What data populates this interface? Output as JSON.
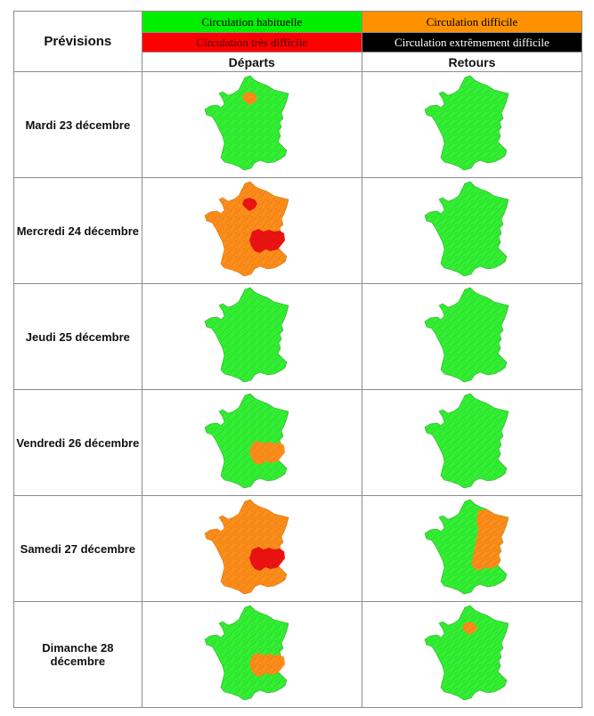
{
  "header": {
    "title": "Prévisions",
    "columns": [
      "Départs",
      "Retours"
    ]
  },
  "legend": [
    {
      "label": "Circulation habituelle",
      "level": "habituelle",
      "bg": "#00ee00",
      "fg": "#000000"
    },
    {
      "label": "Circulation difficile",
      "level": "difficile",
      "bg": "#ff9100",
      "fg": "#000000"
    },
    {
      "label": "Circulation très difficile",
      "level": "tres_difficile",
      "bg": "#ff0000",
      "fg": "#3a0000"
    },
    {
      "label": "Circulation extrêmement difficile",
      "level": "extremement_difficile",
      "bg": "#000000",
      "fg": "#ffffff"
    }
  ],
  "colors": {
    "habituelle": "#33ee33",
    "difficile": "#ff8c1a",
    "tres_difficile": "#ee1111",
    "border": "#2fae2f"
  },
  "rows": [
    {
      "day": "Mardi 23 décembre",
      "departs": {
        "base": "habituelle",
        "idf": "difficile",
        "ara": null
      },
      "retours": {
        "base": "habituelle",
        "idf": null,
        "ara": null
      }
    },
    {
      "day": "Mercredi 24 décembre",
      "departs": {
        "base": "difficile",
        "idf": "tres_difficile",
        "ara": "tres_difficile"
      },
      "retours": {
        "base": "habituelle",
        "idf": null,
        "ara": null
      }
    },
    {
      "day": "Jeudi 25 décembre",
      "departs": {
        "base": "habituelle",
        "idf": null,
        "ara": null
      },
      "retours": {
        "base": "habituelle",
        "idf": null,
        "ara": null
      }
    },
    {
      "day": "Vendredi 26 décembre",
      "departs": {
        "base": "habituelle",
        "idf": null,
        "ara": "difficile"
      },
      "retours": {
        "base": "habituelle",
        "idf": null,
        "ara": null
      }
    },
    {
      "day": "Samedi 27 décembre",
      "departs": {
        "base": "difficile",
        "idf": null,
        "ara": "tres_difficile"
      },
      "retours": {
        "base": "habituelle",
        "idf": null,
        "ara": null,
        "east": "difficile"
      }
    },
    {
      "day": "Dimanche 28 décembre",
      "departs": {
        "base": "habituelle",
        "idf": null,
        "ara": "difficile"
      },
      "retours": {
        "base": "habituelle",
        "idf": "difficile",
        "ara": null
      }
    }
  ]
}
